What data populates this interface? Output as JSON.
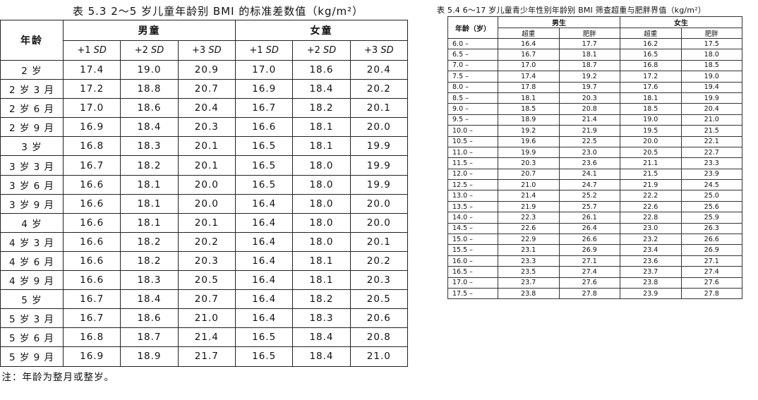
{
  "table1": {
    "caption": "表 5.3  2～5 岁儿童年龄别 BMI 的标准差数值（kg/m²）",
    "age_header": "年龄",
    "boys_header": "男童",
    "girls_header": "女童",
    "sd_headers": [
      "+1 SD",
      "+2 SD",
      "+3 SD",
      "+1 SD",
      "+2 SD",
      "+3 SD"
    ],
    "rows": [
      [
        "2 岁",
        "17.4",
        "19.0",
        "20.9",
        "17.0",
        "18.6",
        "20.4"
      ],
      [
        "2 岁 3 月",
        "17.2",
        "18.8",
        "20.7",
        "16.9",
        "18.4",
        "20.2"
      ],
      [
        "2 岁 6 月",
        "17.0",
        "18.6",
        "20.4",
        "16.7",
        "18.2",
        "20.1"
      ],
      [
        "2 岁 9 月",
        "16.9",
        "18.4",
        "20.3",
        "16.6",
        "18.1",
        "20.0"
      ],
      [
        "3 岁",
        "16.8",
        "18.3",
        "20.1",
        "16.5",
        "18.1",
        "19.9"
      ],
      [
        "3 岁 3 月",
        "16.7",
        "18.2",
        "20.1",
        "16.5",
        "18.0",
        "19.9"
      ],
      [
        "3 岁 6 月",
        "16.6",
        "18.1",
        "20.0",
        "16.5",
        "18.0",
        "19.9"
      ],
      [
        "3 岁 9 月",
        "16.6",
        "18.1",
        "20.0",
        "16.4",
        "18.0",
        "20.0"
      ],
      [
        "4 岁",
        "16.6",
        "18.1",
        "20.1",
        "16.4",
        "18.0",
        "20.0"
      ],
      [
        "4 岁 3 月",
        "16.6",
        "18.2",
        "20.2",
        "16.4",
        "18.0",
        "20.1"
      ],
      [
        "4 岁 6 月",
        "16.6",
        "18.2",
        "20.3",
        "16.4",
        "18.1",
        "20.2"
      ],
      [
        "4 岁 9 月",
        "16.6",
        "18.3",
        "20.5",
        "16.4",
        "18.1",
        "20.3"
      ],
      [
        "5 岁",
        "16.7",
        "18.4",
        "20.7",
        "16.4",
        "18.2",
        "20.5"
      ],
      [
        "5 岁 3 月",
        "16.7",
        "18.6",
        "21.0",
        "16.4",
        "18.3",
        "20.6"
      ],
      [
        "5 岁 6 月",
        "16.8",
        "18.7",
        "21.4",
        "16.5",
        "18.4",
        "20.8"
      ],
      [
        "5 岁 9 月",
        "16.9",
        "18.9",
        "21.7",
        "16.5",
        "18.4",
        "21.0"
      ]
    ],
    "note": "注：年龄为整月或整岁。"
  },
  "table2": {
    "caption": "表 5.4  6～17 岁儿童青少年性别年龄别 BMI 筛查超重与肥胖界值（kg/m²）",
    "age_header": "年龄（岁）",
    "boys_header": "男生",
    "girls_header": "女生",
    "sub_headers": [
      "超重",
      "肥胖",
      "超重",
      "肥胖"
    ],
    "rows": [
      [
        "6.0 –",
        "16.4",
        "17.7",
        "16.2",
        "17.5"
      ],
      [
        "6.5 –",
        "16.7",
        "18.1",
        "16.5",
        "18.0"
      ],
      [
        "7.0 –",
        "17.0",
        "18.7",
        "16.8",
        "18.5"
      ],
      [
        "7.5 –",
        "17.4",
        "19.2",
        "17.2",
        "19.0"
      ],
      [
        "8.0 –",
        "17.8",
        "19.7",
        "17.6",
        "19.4"
      ],
      [
        "8.5 –",
        "18.1",
        "20.3",
        "18.1",
        "19.9"
      ],
      [
        "9.0 –",
        "18.5",
        "20.8",
        "18.5",
        "20.4"
      ],
      [
        "9.5 –",
        "18.9",
        "21.4",
        "19.0",
        "21.0"
      ],
      [
        "10.0 –",
        "19.2",
        "21.9",
        "19.5",
        "21.5"
      ],
      [
        "10.5 –",
        "19.6",
        "22.5",
        "20.0",
        "22.1"
      ],
      [
        "11.0 –",
        "19.9",
        "23.0",
        "20.5",
        "22.7"
      ],
      [
        "11.5 –",
        "20.3",
        "23.6",
        "21.1",
        "23.3"
      ],
      [
        "12.0 –",
        "20.7",
        "24.1",
        "21.5",
        "23.9"
      ],
      [
        "12.5 –",
        "21.0",
        "24.7",
        "21.9",
        "24.5"
      ],
      [
        "13.0 –",
        "21.4",
        "25.2",
        "22.2",
        "25.0"
      ],
      [
        "13.5 –",
        "21.9",
        "25.7",
        "22.6",
        "25.6"
      ],
      [
        "14.0 –",
        "22.3",
        "26.1",
        "22.8",
        "25.9"
      ],
      [
        "14.5 –",
        "22.6",
        "26.4",
        "23.0",
        "26.3"
      ],
      [
        "15.0 –",
        "22.9",
        "26.6",
        "23.2",
        "26.6"
      ],
      [
        "15.5 –",
        "23.1",
        "26.9",
        "23.4",
        "26.9"
      ],
      [
        "16.0 –",
        "23.3",
        "27.1",
        "23.6",
        "27.1"
      ],
      [
        "16.5 –",
        "23.5",
        "27.4",
        "23.7",
        "27.4"
      ],
      [
        "17.0 –",
        "23.7",
        "27.6",
        "23.8",
        "27.6"
      ],
      [
        "17.5 –",
        "23.8",
        "27.8",
        "23.9",
        "27.8"
      ]
    ]
  }
}
